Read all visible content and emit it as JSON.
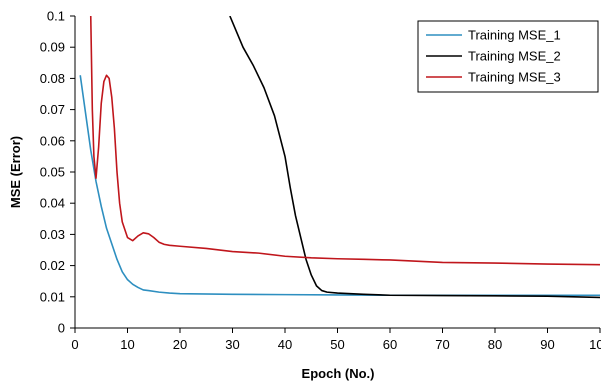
{
  "chart_data": {
    "type": "line",
    "title": "",
    "xlabel": "Epoch (No.)",
    "ylabel": "MSE (Error)",
    "xlim": [
      0,
      100
    ],
    "ylim": [
      0,
      0.1
    ],
    "x_ticks": [
      0,
      10,
      20,
      30,
      40,
      50,
      60,
      70,
      80,
      90,
      100
    ],
    "x_tick_labels": [
      "0",
      "10",
      "20",
      "30",
      "40",
      "50",
      "60",
      "70",
      "80",
      "90",
      "100"
    ],
    "y_ticks": [
      0,
      0.01,
      0.02,
      0.03,
      0.04,
      0.05,
      0.06,
      0.07,
      0.08,
      0.09,
      0.1
    ],
    "y_tick_labels": [
      "0",
      "0.01",
      "0.02",
      "0.03",
      "0.04",
      "0.05",
      "0.06",
      "0.07",
      "0.08",
      "0.09",
      "0.1"
    ],
    "grid": false,
    "legend_position": "top-right",
    "series": [
      {
        "name": "Training MSE_1",
        "color": "#2e8fc0",
        "points": [
          [
            1,
            0.081
          ],
          [
            2,
            0.069
          ],
          [
            3,
            0.057
          ],
          [
            4,
            0.047
          ],
          [
            5,
            0.039
          ],
          [
            6,
            0.032
          ],
          [
            7,
            0.027
          ],
          [
            8,
            0.022
          ],
          [
            9,
            0.018
          ],
          [
            10,
            0.0155
          ],
          [
            11,
            0.014
          ],
          [
            12,
            0.013
          ],
          [
            13,
            0.0122
          ],
          [
            14,
            0.012
          ],
          [
            16,
            0.0115
          ],
          [
            18,
            0.0112
          ],
          [
            20,
            0.011
          ],
          [
            30,
            0.0108
          ],
          [
            40,
            0.0107
          ],
          [
            50,
            0.0106
          ],
          [
            60,
            0.0105
          ],
          [
            70,
            0.0105
          ],
          [
            80,
            0.0105
          ],
          [
            90,
            0.0105
          ],
          [
            100,
            0.0105
          ]
        ]
      },
      {
        "name": "Training MSE_2",
        "color": "#000000",
        "points": [
          [
            29.5,
            0.1
          ],
          [
            30,
            0.098
          ],
          [
            31,
            0.094
          ],
          [
            32,
            0.09
          ],
          [
            34,
            0.084
          ],
          [
            36,
            0.077
          ],
          [
            38,
            0.068
          ],
          [
            40,
            0.055
          ],
          [
            41,
            0.045
          ],
          [
            42,
            0.036
          ],
          [
            43,
            0.029
          ],
          [
            44,
            0.022
          ],
          [
            45,
            0.017
          ],
          [
            46,
            0.0135
          ],
          [
            47,
            0.012
          ],
          [
            48,
            0.0115
          ],
          [
            50,
            0.0112
          ],
          [
            55,
            0.0108
          ],
          [
            60,
            0.0105
          ],
          [
            70,
            0.0104
          ],
          [
            80,
            0.0103
          ],
          [
            90,
            0.0102
          ],
          [
            95,
            0.01
          ],
          [
            100,
            0.0098
          ]
        ]
      },
      {
        "name": "Training MSE_3",
        "color": "#c0161c",
        "points": [
          [
            3,
            0.1
          ],
          [
            3.3,
            0.07
          ],
          [
            3.6,
            0.055
          ],
          [
            4,
            0.048
          ],
          [
            4.5,
            0.058
          ],
          [
            5,
            0.072
          ],
          [
            5.5,
            0.079
          ],
          [
            6,
            0.081
          ],
          [
            6.5,
            0.08
          ],
          [
            7,
            0.074
          ],
          [
            7.5,
            0.064
          ],
          [
            8,
            0.05
          ],
          [
            8.5,
            0.04
          ],
          [
            9,
            0.034
          ],
          [
            10,
            0.029
          ],
          [
            11,
            0.028
          ],
          [
            12,
            0.0295
          ],
          [
            13,
            0.0305
          ],
          [
            14,
            0.0302
          ],
          [
            15,
            0.029
          ],
          [
            16,
            0.0275
          ],
          [
            17,
            0.0268
          ],
          [
            18,
            0.0265
          ],
          [
            20,
            0.0262
          ],
          [
            25,
            0.0255
          ],
          [
            30,
            0.0245
          ],
          [
            35,
            0.024
          ],
          [
            40,
            0.023
          ],
          [
            45,
            0.0225
          ],
          [
            50,
            0.0222
          ],
          [
            55,
            0.022
          ],
          [
            60,
            0.0218
          ],
          [
            70,
            0.021
          ],
          [
            80,
            0.0208
          ],
          [
            90,
            0.0205
          ],
          [
            100,
            0.0203
          ]
        ]
      }
    ]
  }
}
